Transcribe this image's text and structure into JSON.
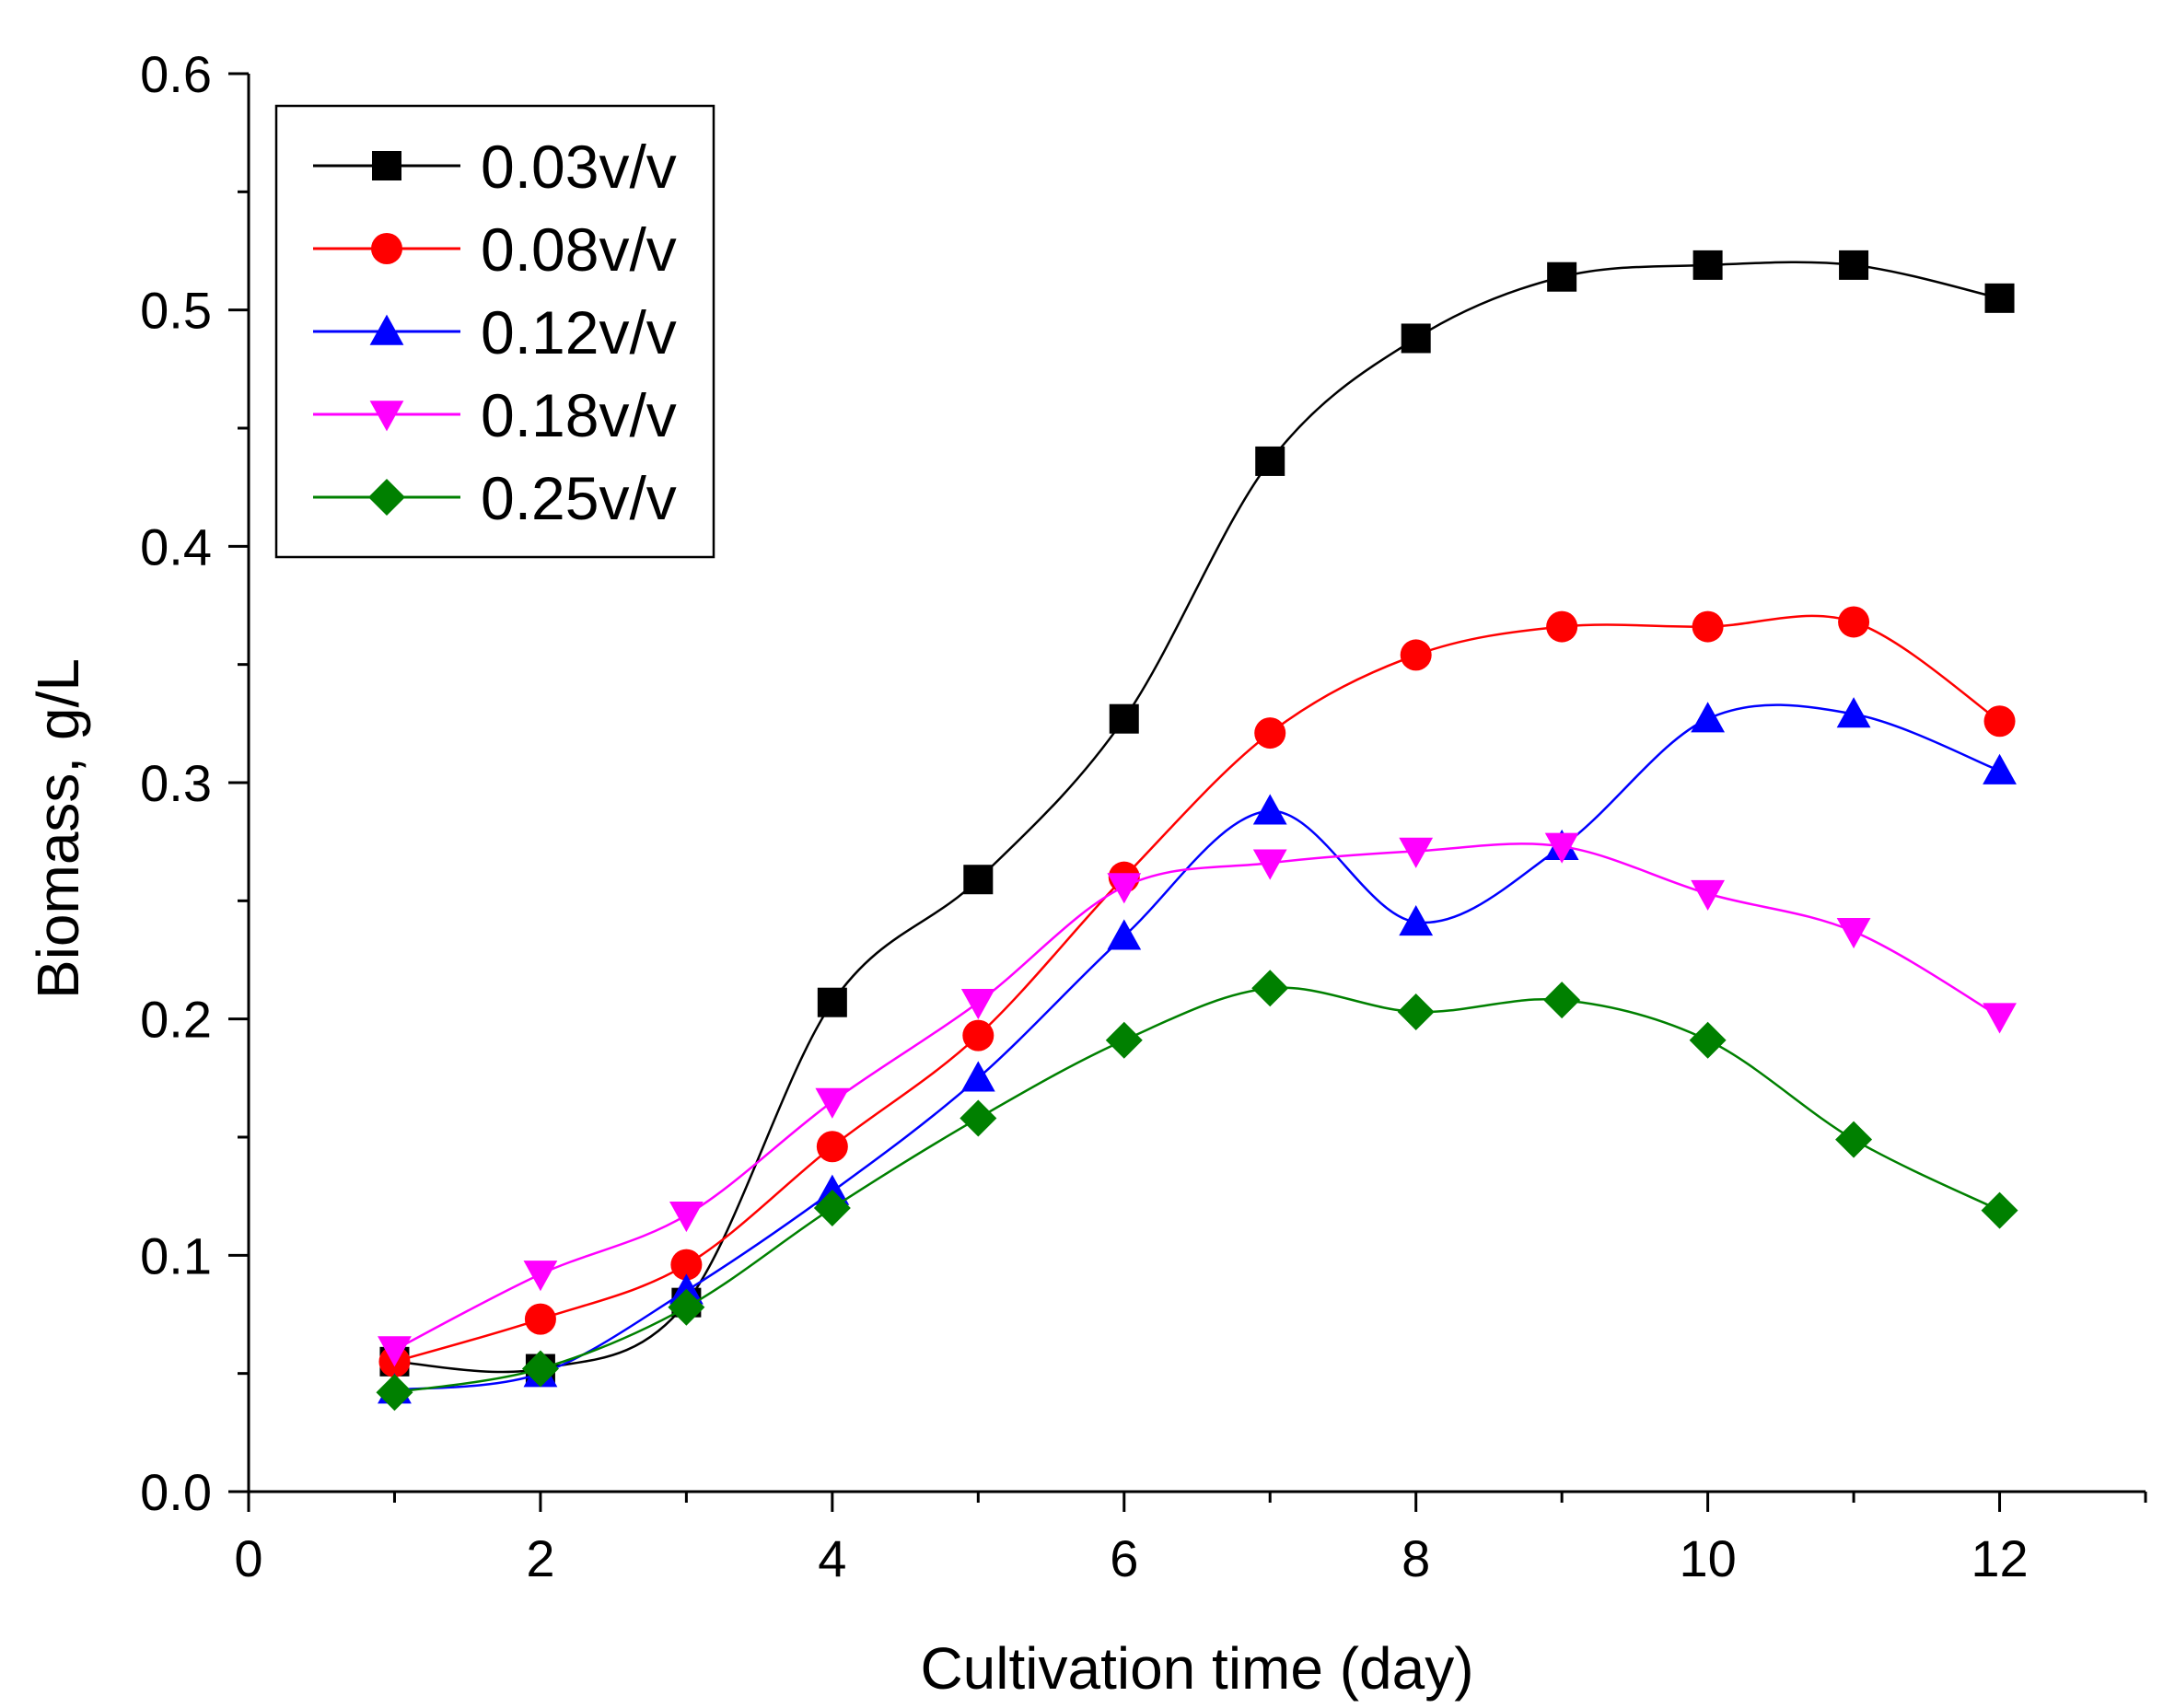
{
  "chart_data": {
    "type": "line",
    "title": "",
    "xlabel": "Cultivation time (day)",
    "ylabel": "Biomass, g/L",
    "xlim": [
      0,
      13
    ],
    "ylim": [
      0.0,
      0.6
    ],
    "xticks": [
      0,
      2,
      4,
      6,
      8,
      10,
      12
    ],
    "xtick_labels": [
      "0",
      "2",
      "4",
      "6",
      "8",
      "10",
      "12"
    ],
    "yticks": [
      0.0,
      0.1,
      0.2,
      0.3,
      0.4,
      0.5,
      0.6
    ],
    "ytick_labels": [
      "0.0",
      "0.1",
      "0.2",
      "0.3",
      "0.4",
      "0.5",
      "0.6"
    ],
    "grid": false,
    "legend_position": "top-left",
    "x": [
      1,
      2,
      3,
      4,
      5,
      6,
      7,
      8,
      9,
      10,
      11,
      12
    ],
    "series": [
      {
        "name": "0.03v/v",
        "marker": "square",
        "color": "#000000",
        "values": [
          0.055,
          0.052,
          0.08,
          0.207,
          0.259,
          0.327,
          0.436,
          0.488,
          0.514,
          0.519,
          0.519,
          0.505
        ]
      },
      {
        "name": "0.08v/v",
        "marker": "circle",
        "color": "#ff0000",
        "values": [
          0.055,
          0.073,
          0.096,
          0.146,
          0.193,
          0.26,
          0.321,
          0.354,
          0.366,
          0.366,
          0.368,
          0.326
        ]
      },
      {
        "name": "0.12v/v",
        "marker": "triangle-up",
        "color": "#0000ff",
        "values": [
          0.043,
          0.05,
          0.085,
          0.127,
          0.175,
          0.235,
          0.288,
          0.241,
          0.273,
          0.327,
          0.329,
          0.305
        ]
      },
      {
        "name": "0.18v/v",
        "marker": "triangle-down",
        "color": "#ff00ff",
        "values": [
          0.06,
          0.092,
          0.117,
          0.165,
          0.207,
          0.256,
          0.266,
          0.271,
          0.273,
          0.253,
          0.237,
          0.201
        ]
      },
      {
        "name": "0.25v/v",
        "marker": "diamond",
        "color": "#008000",
        "values": [
          0.042,
          0.052,
          0.078,
          0.12,
          0.158,
          0.191,
          0.213,
          0.203,
          0.208,
          0.191,
          0.149,
          0.119
        ]
      }
    ]
  }
}
